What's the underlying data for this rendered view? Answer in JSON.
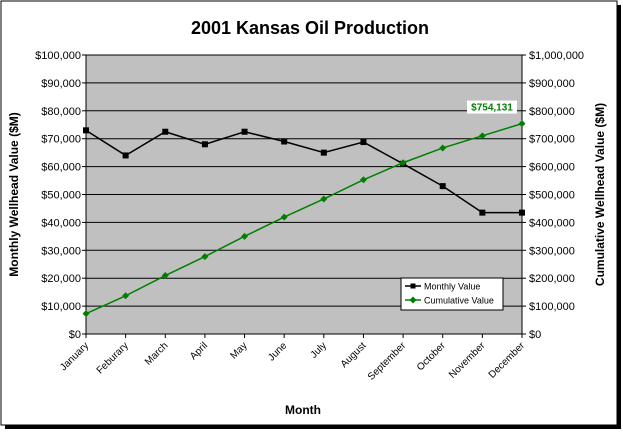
{
  "chart_data": {
    "type": "line",
    "title": "2001 Kansas Oil Production",
    "xlabel": "Month",
    "ylabel_left": "Monthly Wellhead Value ($M)",
    "ylabel_right": "Cumulative Wellhead Value ($M)",
    "categories": [
      "January",
      "Feburary",
      "March",
      "April",
      "May",
      "June",
      "July",
      "August",
      "September",
      "October",
      "November",
      "December"
    ],
    "y_left": {
      "min": 0,
      "max": 100000,
      "step": 10000,
      "ticks": [
        "$0",
        "$10,000",
        "$20,000",
        "$30,000",
        "$40,000",
        "$50,000",
        "$60,000",
        "$70,000",
        "$80,000",
        "$90,000",
        "$100,000"
      ]
    },
    "y_right": {
      "min": 0,
      "max": 1000000,
      "step": 100000,
      "ticks": [
        "$0",
        "$100,000",
        "$200,000",
        "$300,000",
        "$400,000",
        "$500,000",
        "$600,000",
        "$700,000",
        "$800,000",
        "$900,000",
        "$1,000,000"
      ]
    },
    "grid": true,
    "legend_position": "bottom-right",
    "series": [
      {
        "name": "Monthly Value",
        "axis": "left",
        "color": "#000000",
        "marker": "square",
        "values": [
          73000,
          64000,
          72500,
          68000,
          72500,
          69000,
          65000,
          68800,
          61000,
          53000,
          43500,
          43500
        ]
      },
      {
        "name": "Cumulative Value",
        "axis": "right",
        "color": "#008000",
        "marker": "diamond",
        "values": [
          73000,
          137000,
          209500,
          277500,
          350000,
          419000,
          484000,
          552800,
          613800,
          666800,
          710300,
          754131
        ]
      }
    ],
    "annotation": {
      "text": "$754,131",
      "series": 1,
      "index": 11,
      "color": "#008000"
    }
  },
  "colors": {
    "plot_background": "#c0c0c0",
    "gridline": "#000000",
    "monthly": "#000000",
    "cumulative": "#008000"
  }
}
